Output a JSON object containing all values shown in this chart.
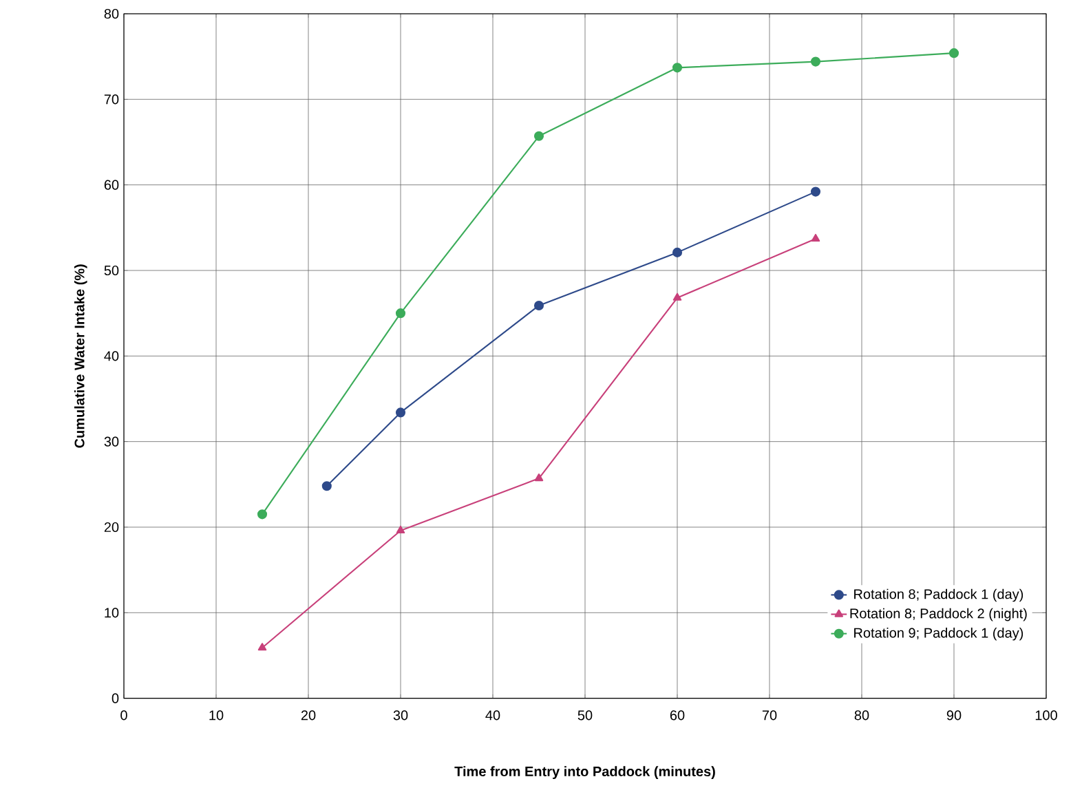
{
  "chart_data": {
    "type": "line",
    "xlabel": "Time from Entry into Paddock (minutes)",
    "ylabel": "Cumulative Water Intake (%)",
    "xlim": [
      0,
      100
    ],
    "ylim": [
      0,
      80
    ],
    "xticks": [
      0,
      10,
      20,
      30,
      40,
      50,
      60,
      70,
      80,
      90,
      100
    ],
    "yticks": [
      0,
      10,
      20,
      30,
      40,
      50,
      60,
      70,
      80
    ],
    "grid": true,
    "legend": "bottom right",
    "line_style": "solid",
    "series": [
      {
        "name": "Rotation 8; Paddock 1 (day)",
        "color": "#2e4a8a",
        "marker": "circle",
        "x": [
          22,
          30,
          45,
          60,
          75
        ],
        "values": [
          24.8,
          33.4,
          45.9,
          52.1,
          59.2
        ]
      },
      {
        "name": "Rotation 8; Paddock 2 (night)",
        "color": "#c8407a",
        "marker": "triangle",
        "x": [
          15,
          30,
          45,
          60,
          75
        ],
        "values": [
          5.9,
          19.6,
          25.7,
          46.8,
          53.7
        ]
      },
      {
        "name": "Rotation 9; Paddock 1 (day)",
        "color": "#3cac5a",
        "marker": "circle",
        "x": [
          15,
          30,
          45,
          60,
          75,
          90
        ],
        "values": [
          21.5,
          45.0,
          65.7,
          73.7,
          74.4,
          75.4
        ]
      }
    ]
  }
}
